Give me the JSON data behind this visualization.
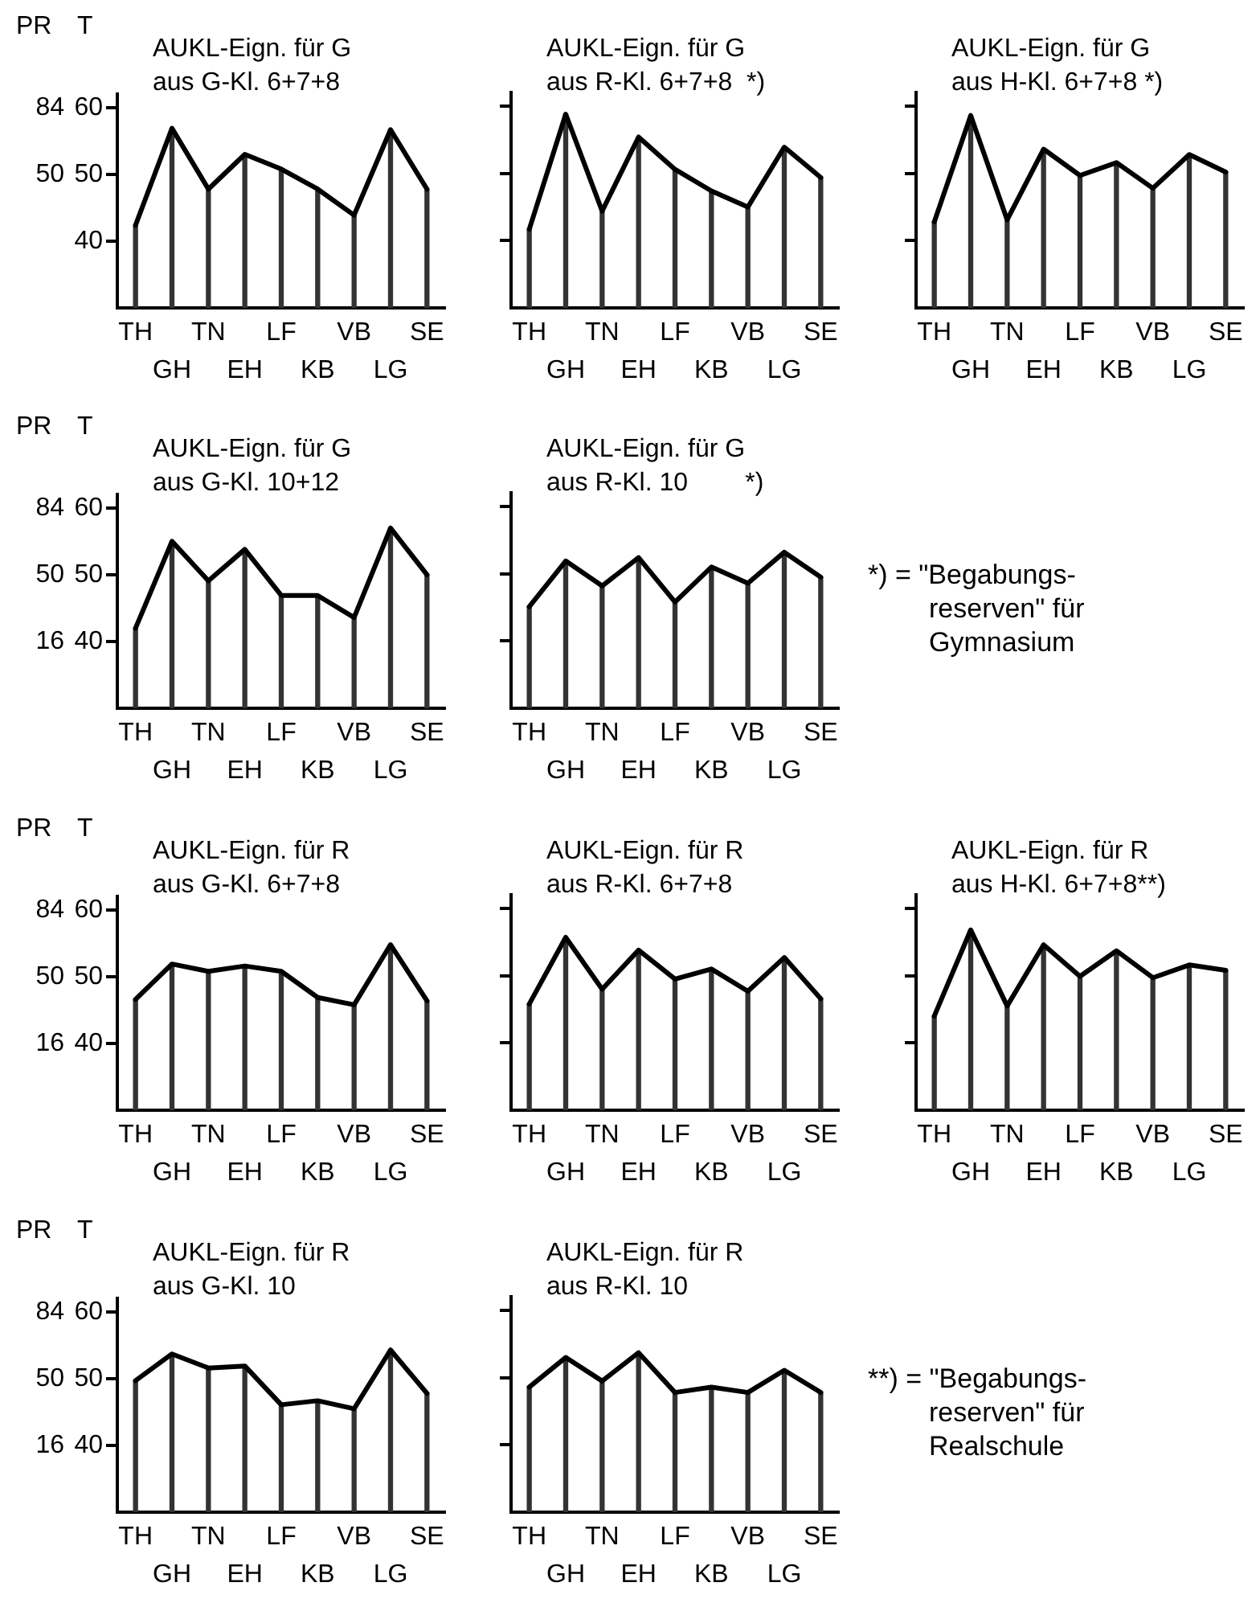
{
  "chart_data": [
    {
      "type": "line",
      "title": "AUKL-Eign. für G\naus G-Kl. 6+7+8",
      "ylabel": "T",
      "y2label": "PR",
      "categories": [
        "TH",
        "GH",
        "TN",
        "EH",
        "LF",
        "KB",
        "VB",
        "LG",
        "SE"
      ],
      "series": [
        {
          "type": "line",
          "color": "#000000",
          "values": [
            42.4,
            56.9,
            47.8,
            53,
            50.8,
            47.8,
            43.9,
            56.7,
            47.8
          ]
        },
        {
          "type": "bar",
          "color": "#333333",
          "base": [
            30,
            30,
            30,
            30,
            30,
            30,
            30,
            30,
            30
          ],
          "values": [
            12.4,
            26.9,
            17.8,
            23,
            20.8,
            17.8,
            13.9,
            26.7,
            17.8
          ]
        }
      ],
      "ylim": [
        30,
        62
      ],
      "yticks": [
        60,
        50,
        40
      ],
      "y2lim": [
        -18,
        90.8
      ],
      "y2ticks": [
        84,
        50
      ],
      "grid": false,
      "marker": "none"
    },
    {
      "type": "line",
      "title": "AUKL-Eign. für G\naus R-Kl. 6+7+8  *)",
      "categories": [
        "TH",
        "GH",
        "TN",
        "EH",
        "LF",
        "KB",
        "VB",
        "LG",
        "SE"
      ],
      "series": [
        {
          "type": "line",
          "color": "#000000",
          "values": [
            41.7,
            58.8,
            44.4,
            55.4,
            50.6,
            47.4,
            45,
            53.9,
            49.4
          ]
        },
        {
          "type": "bar",
          "color": "#333333",
          "base": [
            30,
            30,
            30,
            30,
            30,
            30,
            30,
            30,
            30
          ],
          "values": [
            11.7,
            28.8,
            14.4,
            25.4,
            20.6,
            17.4,
            15,
            23.9,
            19.4
          ]
        }
      ],
      "ylim": [
        30,
        62
      ],
      "yticks": [
        60,
        50,
        40
      ],
      "tick_labels": "x",
      "grid": false,
      "marker": "none"
    },
    {
      "type": "line",
      "title": "AUKL-Eign. für G\naus H-Kl. 6+7+8 *)",
      "categories": [
        "TH",
        "GH",
        "TN",
        "EH",
        "LF",
        "KB",
        "VB",
        "LG",
        "SE"
      ],
      "series": [
        {
          "type": "line",
          "color": "#000000",
          "values": [
            42.8,
            58.6,
            43.1,
            53.6,
            49.7,
            51.6,
            47.8,
            52.8,
            50.2
          ]
        },
        {
          "type": "bar",
          "color": "#333333",
          "base": [
            30,
            30,
            30,
            30,
            30,
            30,
            30,
            30,
            30
          ],
          "values": [
            12.8,
            28.6,
            13.1,
            23.6,
            19.7,
            21.6,
            17.8,
            22.8,
            20.2
          ]
        }
      ],
      "ylim": [
        30,
        62
      ],
      "yticks": [
        60,
        50,
        40
      ],
      "tick_labels": "x",
      "grid": false,
      "marker": "none"
    },
    {
      "type": "line",
      "title": "AUKL-Eign. für G\naus G-Kl. 10+12",
      "ylabel": "T",
      "y2label": "PR",
      "categories": [
        "TH",
        "GH",
        "TN",
        "EH",
        "LF",
        "KB",
        "VB",
        "LG",
        "SE"
      ],
      "series": [
        {
          "type": "line",
          "color": "#000000",
          "values": [
            42,
            55,
            49.1,
            53.8,
            46.9,
            46.9,
            43.6,
            57,
            50
          ]
        },
        {
          "type": "bar",
          "color": "#333333",
          "base": [
            30,
            30,
            30,
            30,
            30,
            30,
            30,
            30,
            30
          ],
          "values": [
            12,
            25,
            19.1,
            23.8,
            16.9,
            16.9,
            13.6,
            27,
            20
          ]
        }
      ],
      "ylim": [
        30,
        62
      ],
      "yticks": [
        60,
        50,
        40
      ],
      "y2lim": [
        -18,
        90.8
      ],
      "y2ticks": [
        84,
        50,
        16
      ],
      "grid": false,
      "marker": "none"
    },
    {
      "type": "line",
      "title": "AUKL-Eign. für G\naus R-Kl. 10        *)",
      "categories": [
        "TH",
        "GH",
        "TN",
        "EH",
        "LF",
        "KB",
        "VB",
        "LG",
        "SE"
      ],
      "series": [
        {
          "type": "line",
          "color": "#000000",
          "values": [
            45.1,
            51.9,
            48.2,
            52.4,
            45.8,
            51,
            48.6,
            53.2,
            49.5
          ]
        },
        {
          "type": "bar",
          "color": "#333333",
          "base": [
            30,
            30,
            30,
            30,
            30,
            30,
            30,
            30,
            30
          ],
          "values": [
            15.1,
            21.9,
            18.2,
            22.4,
            15.8,
            21,
            18.6,
            23.2,
            19.5
          ]
        }
      ],
      "ylim": [
        30,
        62
      ],
      "yticks": [
        60,
        50,
        40
      ],
      "tick_labels": "x",
      "grid": false,
      "marker": "none"
    },
    {
      "type": "other",
      "annotations": [
        "*) = \"Begabungs-reserven\" für Gymnasium"
      ]
    },
    {
      "type": "line",
      "title": "AUKL-Eign. für R\naus G-Kl. 6+7+8",
      "ylabel": "T",
      "y2label": "PR",
      "categories": [
        "TH",
        "GH",
        "TN",
        "EH",
        "LF",
        "KB",
        "VB",
        "LG",
        "SE"
      ],
      "series": [
        {
          "type": "line",
          "color": "#000000",
          "values": [
            46.6,
            51.9,
            50.8,
            51.6,
            50.8,
            46.9,
            45.8,
            54.8,
            46.4
          ]
        },
        {
          "type": "bar",
          "color": "#333333",
          "base": [
            30,
            30,
            30,
            30,
            30,
            30,
            30,
            30,
            30
          ],
          "values": [
            16.6,
            21.9,
            20.8,
            21.6,
            20.8,
            16.9,
            15.8,
            24.8,
            16.4
          ]
        }
      ],
      "ylim": [
        30,
        62
      ],
      "yticks": [
        60,
        50,
        40
      ],
      "y2lim": [
        -18,
        90.8
      ],
      "y2ticks": [
        84,
        50,
        16
      ],
      "grid": false,
      "marker": "none"
    },
    {
      "type": "line",
      "title": "AUKL-Eign. für R\naus R-Kl. 6+7+8",
      "categories": [
        "TH",
        "GH",
        "TN",
        "EH",
        "LF",
        "KB",
        "VB",
        "LG",
        "SE"
      ],
      "series": [
        {
          "type": "line",
          "color": "#000000",
          "values": [
            45.8,
            55.7,
            48,
            53.8,
            49.5,
            51,
            47.7,
            52.7,
            46.6
          ]
        },
        {
          "type": "bar",
          "color": "#333333",
          "base": [
            30,
            30,
            30,
            30,
            30,
            30,
            30,
            30,
            30
          ],
          "values": [
            15.8,
            25.7,
            18,
            23.8,
            19.5,
            21,
            17.7,
            22.7,
            16.6
          ]
        }
      ],
      "ylim": [
        30,
        62
      ],
      "yticks": [
        60,
        50,
        40
      ],
      "tick_labels": "x",
      "grid": false,
      "marker": "none"
    },
    {
      "type": "line",
      "title": "AUKL-Eign. für R\naus H-Kl. 6+7+8**)",
      "categories": [
        "TH",
        "GH",
        "TN",
        "EH",
        "LF",
        "KB",
        "VB",
        "LG",
        "SE"
      ],
      "series": [
        {
          "type": "line",
          "color": "#000000",
          "values": [
            44,
            56.8,
            45.5,
            54.6,
            49.9,
            53.7,
            49.7,
            51.6,
            50.8
          ]
        },
        {
          "type": "bar",
          "color": "#333333",
          "base": [
            30,
            30,
            30,
            30,
            30,
            30,
            30,
            30,
            30
          ],
          "values": [
            14,
            26.8,
            15.5,
            24.6,
            19.9,
            23.7,
            19.7,
            21.6,
            20.8
          ]
        }
      ],
      "ylim": [
        30,
        62
      ],
      "yticks": [
        60,
        50,
        40
      ],
      "tick_labels": "x",
      "grid": false,
      "marker": "none"
    },
    {
      "type": "line",
      "title": "AUKL-Eign. für R\naus G-Kl. 10",
      "ylabel": "T",
      "y2label": "PR",
      "categories": [
        "TH",
        "GH",
        "TN",
        "EH",
        "LF",
        "KB",
        "VB",
        "LG",
        "SE"
      ],
      "series": [
        {
          "type": "line",
          "color": "#000000",
          "values": [
            49.7,
            53.7,
            51.6,
            51.9,
            46.1,
            46.7,
            45.5,
            54.3,
            47.8
          ]
        },
        {
          "type": "bar",
          "color": "#333333",
          "base": [
            30,
            30,
            30,
            30,
            30,
            30,
            30,
            30,
            30
          ],
          "values": [
            19.7,
            23.7,
            21.6,
            21.9,
            16.1,
            16.7,
            15.5,
            24.3,
            17.8
          ]
        }
      ],
      "ylim": [
        30,
        62
      ],
      "yticks": [
        60,
        50,
        40
      ],
      "y2lim": [
        -18,
        90.8
      ],
      "y2ticks": [
        84,
        50,
        16
      ],
      "grid": false,
      "marker": "none"
    },
    {
      "type": "line",
      "title": "AUKL-Eign. für R\naus R-Kl. 10",
      "categories": [
        "TH",
        "GH",
        "TN",
        "EH",
        "LF",
        "KB",
        "VB",
        "LG",
        "SE"
      ],
      "series": [
        {
          "type": "line",
          "color": "#000000",
          "values": [
            48.6,
            53,
            49.5,
            53.7,
            47.8,
            48.6,
            47.8,
            51.1,
            47.8
          ]
        },
        {
          "type": "bar",
          "color": "#333333",
          "base": [
            30,
            30,
            30,
            30,
            30,
            30,
            30,
            30,
            30
          ],
          "values": [
            18.6,
            23,
            19.5,
            23.7,
            17.8,
            18.6,
            17.8,
            21.1,
            17.8
          ]
        }
      ],
      "ylim": [
        30,
        62
      ],
      "yticks": [
        60,
        50,
        40
      ],
      "tick_labels": "x",
      "grid": false,
      "marker": "none"
    },
    {
      "type": "other",
      "annotations": [
        "**) = \"Begabungs-reserven\" für Realschule"
      ]
    }
  ]
}
